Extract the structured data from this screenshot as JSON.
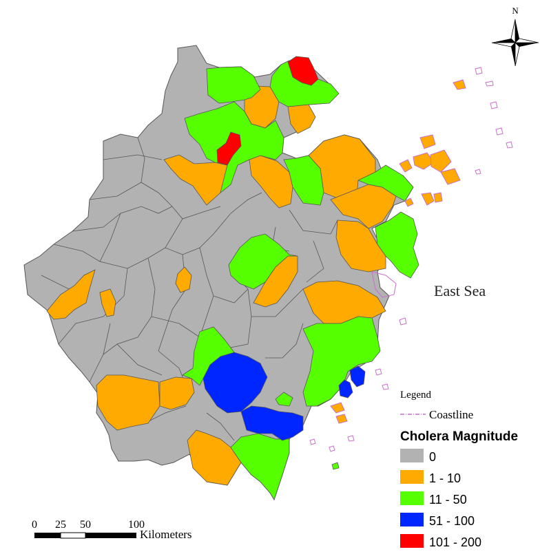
{
  "map": {
    "sea_label": "East Sea",
    "north_label": "N",
    "scale": {
      "ticks": [
        "0",
        "25",
        "50",
        "100"
      ],
      "unit": "Kilometers"
    },
    "legend": {
      "title": "Legend",
      "coastline_label": "Coastline",
      "coastline_color": "#c86fc9",
      "magnitude_title": "Cholera Magnitude",
      "classes": [
        {
          "label": "0",
          "color": "#b2b2b2"
        },
        {
          "label": "1 - 10",
          "color": "#ffaa00"
        },
        {
          "label": "11 - 50",
          "color": "#55ff00"
        },
        {
          "label": "51 - 100",
          "color": "#0026ff"
        },
        {
          "label": "101 - 200",
          "color": "#ff0000"
        }
      ]
    },
    "colors": {
      "border": "#555555",
      "coast": "#c86fc9"
    }
  }
}
